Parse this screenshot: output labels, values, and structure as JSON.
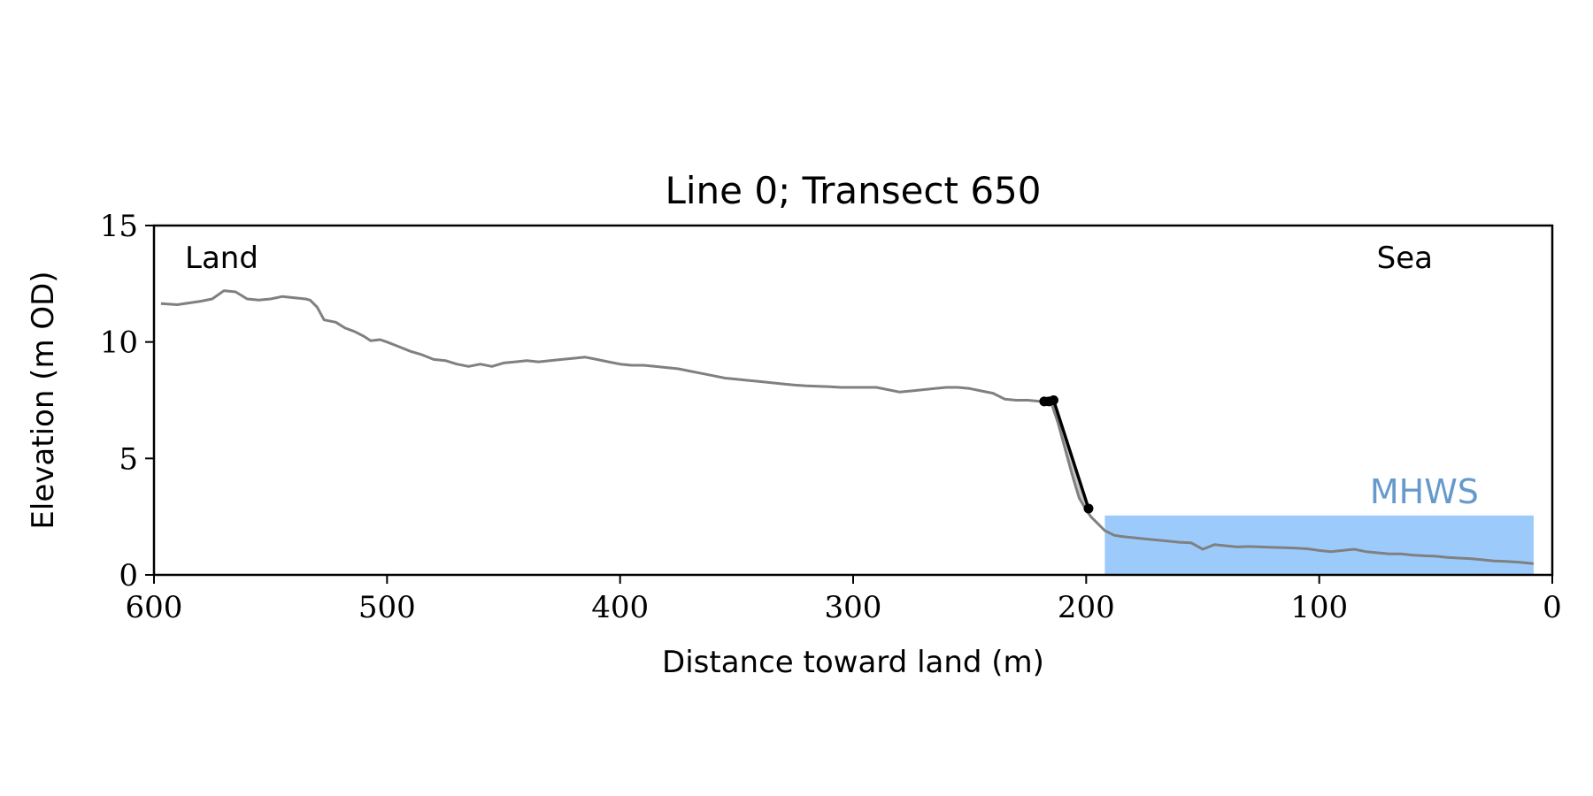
{
  "chart_data": {
    "type": "line",
    "title": "Line 0; Transect 650",
    "xlabel": "Distance toward land (m)",
    "ylabel": "Elevation (m OD)",
    "xlim": [
      600,
      0
    ],
    "ylim": [
      0,
      15
    ],
    "x_ticks": [
      600,
      500,
      400,
      300,
      200,
      100,
      0
    ],
    "y_ticks": [
      0,
      5,
      10,
      15
    ],
    "grid": false,
    "annotations": {
      "left": "Land",
      "right": "Sea",
      "level_label": "MHWS"
    },
    "mhws": {
      "level": 2.55,
      "x_start": 192,
      "x_end": 8,
      "color": "#9ccbfb",
      "label_color": "#6699cc"
    },
    "colors": {
      "profile": "#808080",
      "cliff": "#000000",
      "cliff_fill": "#c8c8c8"
    },
    "series": [
      {
        "role": "profile",
        "x": [
          597,
          590,
          580,
          575,
          570,
          565,
          560,
          555,
          550,
          545,
          540,
          535,
          533,
          530,
          527,
          522,
          518,
          514,
          510,
          507,
          503,
          500,
          495,
          490,
          485,
          480,
          475,
          470,
          465,
          460,
          455,
          450,
          445,
          440,
          435,
          430,
          425,
          420,
          415,
          410,
          405,
          400,
          395,
          390,
          385,
          380,
          375,
          370,
          365,
          360,
          355,
          350,
          345,
          340,
          335,
          330,
          325,
          320,
          315,
          310,
          305,
          300,
          295,
          290,
          285,
          280,
          275,
          270,
          265,
          260,
          255,
          250,
          245,
          240,
          235,
          230,
          225,
          220,
          215,
          212,
          209,
          206,
          203,
          200,
          198,
          195,
          192,
          188,
          185,
          180,
          175,
          170,
          165,
          160,
          155,
          150,
          145,
          140,
          135,
          130,
          125,
          120,
          115,
          110,
          105,
          100,
          95,
          90,
          85,
          80,
          75,
          70,
          65,
          60,
          55,
          50,
          45,
          40,
          35,
          30,
          25,
          20,
          15,
          10,
          8
        ],
        "y": [
          11.65,
          11.6,
          11.75,
          11.85,
          12.2,
          12.15,
          11.85,
          11.8,
          11.85,
          11.95,
          11.9,
          11.85,
          11.8,
          11.5,
          10.95,
          10.85,
          10.6,
          10.45,
          10.25,
          10.05,
          10.1,
          10.0,
          9.8,
          9.6,
          9.45,
          9.25,
          9.2,
          9.05,
          8.95,
          9.05,
          8.95,
          9.1,
          9.15,
          9.2,
          9.15,
          9.2,
          9.25,
          9.3,
          9.35,
          9.25,
          9.15,
          9.05,
          9.0,
          9.0,
          8.95,
          8.9,
          8.85,
          8.75,
          8.65,
          8.55,
          8.45,
          8.4,
          8.35,
          8.3,
          8.25,
          8.2,
          8.15,
          8.12,
          8.1,
          8.08,
          8.05,
          8.05,
          8.05,
          8.05,
          7.95,
          7.85,
          7.9,
          7.95,
          8.0,
          8.05,
          8.05,
          8.0,
          7.9,
          7.8,
          7.55,
          7.5,
          7.5,
          7.45,
          7.4,
          6.5,
          5.4,
          4.3,
          3.3,
          2.8,
          2.5,
          2.2,
          1.9,
          1.7,
          1.65,
          1.6,
          1.55,
          1.5,
          1.45,
          1.4,
          1.38,
          1.1,
          1.3,
          1.25,
          1.2,
          1.22,
          1.2,
          1.18,
          1.17,
          1.15,
          1.12,
          1.05,
          1.0,
          1.05,
          1.1,
          1.0,
          0.95,
          0.9,
          0.9,
          0.85,
          0.82,
          0.8,
          0.75,
          0.72,
          0.7,
          0.65,
          0.6,
          0.58,
          0.55,
          0.5,
          0.48
        ]
      },
      {
        "role": "cliff",
        "x": [
          218,
          216,
          214,
          199
        ],
        "y": [
          7.45,
          7.45,
          7.5,
          2.85
        ]
      }
    ]
  }
}
